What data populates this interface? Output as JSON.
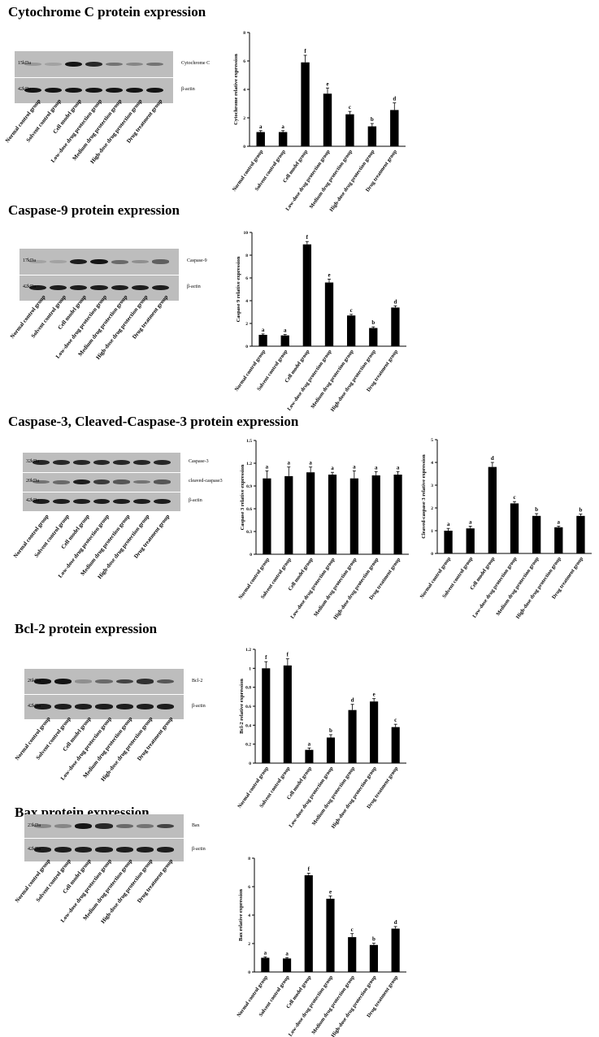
{
  "groups": [
    "Normal control group",
    "Solvent control group",
    "Cell model group",
    "Low-dose drug protection group",
    "Medium drug protection group",
    "High-dose drug protection group",
    "Drug treatment group"
  ],
  "sections": [
    {
      "title": "Cytochrome C protein expression"
    },
    {
      "title": "Caspase-9 protein expression"
    },
    {
      "title": "Caspase-3, Cleaved-Caspase-3 protein expression"
    },
    {
      "title": "Bcl-2 protein expression"
    },
    {
      "title": "Bax protein expression"
    }
  ],
  "blots": [
    {
      "rows": [
        {
          "kda": "15kDa",
          "protein": "Cytochrome C",
          "intensity": [
            0.25,
            0.2,
            0.95,
            0.85,
            0.45,
            0.35,
            0.45
          ]
        },
        {
          "kda": "42kDa",
          "protein": "β-actin",
          "intensity": [
            0.95,
            0.95,
            0.95,
            0.95,
            0.95,
            0.95,
            0.95
          ]
        }
      ]
    },
    {
      "rows": [
        {
          "kda": "17kDa",
          "protein": "Caspase-9",
          "intensity": [
            0.2,
            0.2,
            0.9,
            0.95,
            0.5,
            0.3,
            0.55
          ]
        },
        {
          "kda": "42kDa",
          "protein": "β-actin",
          "intensity": [
            0.9,
            0.9,
            0.9,
            0.9,
            0.9,
            0.9,
            0.9
          ]
        }
      ]
    },
    {
      "rows": [
        {
          "kda": "32kDa",
          "protein": "Caspase-3",
          "intensity": [
            0.85,
            0.85,
            0.85,
            0.85,
            0.85,
            0.85,
            0.85
          ]
        },
        {
          "kda": "20kDa",
          "protein": "cleaved-caspase3",
          "intensity": [
            0.45,
            0.5,
            0.9,
            0.75,
            0.6,
            0.45,
            0.6
          ]
        },
        {
          "kda": "42kDa",
          "protein": "β-actin",
          "intensity": [
            0.9,
            0.9,
            0.9,
            0.9,
            0.9,
            0.9,
            0.9
          ]
        }
      ]
    },
    {
      "rows": [
        {
          "kda": "26kDa",
          "protein": "Bcl-2",
          "intensity": [
            0.95,
            0.95,
            0.3,
            0.5,
            0.7,
            0.8,
            0.6
          ]
        },
        {
          "kda": "42kDa",
          "protein": "β-actin",
          "intensity": [
            0.9,
            0.9,
            0.9,
            0.9,
            0.9,
            0.9,
            0.9
          ]
        }
      ]
    },
    {
      "rows": [
        {
          "kda": "23kDa",
          "protein": "Bax",
          "intensity": [
            0.35,
            0.35,
            0.95,
            0.85,
            0.5,
            0.45,
            0.7
          ]
        },
        {
          "kda": "42kDa",
          "protein": "β-actin",
          "intensity": [
            0.9,
            0.9,
            0.9,
            0.9,
            0.9,
            0.9,
            0.9
          ]
        }
      ]
    }
  ],
  "chart_data": [
    {
      "type": "bar",
      "ylabel": "Cytochrome relative expression",
      "ylim": [
        0,
        8
      ],
      "yticks": [
        0,
        2,
        4,
        6,
        8
      ],
      "categories": [
        "Normal control group",
        "Solvent control group",
        "Cell model group",
        "Low-dose drug protection group",
        "Medium drug protection group",
        "High-dose drug protection group",
        "Drug treatment group"
      ],
      "values": [
        1.0,
        1.0,
        5.9,
        3.7,
        2.25,
        1.4,
        2.55
      ],
      "errors": [
        0.1,
        0.1,
        0.5,
        0.4,
        0.2,
        0.2,
        0.5
      ],
      "letters": [
        "a",
        "a",
        "f",
        "e",
        "c",
        "b",
        "d"
      ]
    },
    {
      "type": "bar",
      "ylabel": "Caspase 9 relative expression",
      "ylim": [
        0,
        10
      ],
      "yticks": [
        0,
        2,
        4,
        6,
        8,
        10
      ],
      "categories": [
        "Normal control group",
        "Solvent control group",
        "Cell model group",
        "Low-dose drug protection group",
        "Medium drug protection group",
        "High-dose drug protection group",
        "Drug treatment group"
      ],
      "values": [
        1.0,
        0.95,
        8.95,
        5.6,
        2.7,
        1.6,
        3.4
      ],
      "errors": [
        0.08,
        0.08,
        0.25,
        0.3,
        0.1,
        0.1,
        0.15
      ],
      "letters": [
        "a",
        "a",
        "f",
        "e",
        "c",
        "b",
        "d"
      ]
    },
    {
      "type": "bar",
      "ylabel": "Caspase 3  relative expression",
      "ylim": [
        0,
        1.5
      ],
      "yticks": [
        0,
        0.3,
        0.6,
        0.9,
        1.2,
        1.5
      ],
      "categories": [
        "Normal control group",
        "Solvent control group",
        "Cell model group",
        "Low-dose drug protection group",
        "Medium drug protection group",
        "High-dose drug protection group",
        "Drug treatment group"
      ],
      "values": [
        1.0,
        1.03,
        1.08,
        1.05,
        1.0,
        1.04,
        1.05
      ],
      "errors": [
        0.1,
        0.12,
        0.07,
        0.03,
        0.1,
        0.05,
        0.04
      ],
      "letters": [
        "a",
        "a",
        "a",
        "a",
        "a",
        "a",
        "a"
      ]
    },
    {
      "type": "bar",
      "ylabel": "Cleaved-caspase 3  relative expression",
      "ylim": [
        0,
        5
      ],
      "yticks": [
        0,
        1,
        2,
        3,
        4,
        5
      ],
      "categories": [
        "Normal control group",
        "Solvent control group",
        "Cell model group",
        "Low-dose drug protection group",
        "Medium drug protection group",
        "High-dose drug protection group",
        "Drug treatment group"
      ],
      "values": [
        1.0,
        1.1,
        3.8,
        2.2,
        1.65,
        1.15,
        1.65
      ],
      "errors": [
        0.1,
        0.1,
        0.2,
        0.08,
        0.1,
        0.05,
        0.08
      ],
      "letters": [
        "a",
        "a",
        "d",
        "c",
        "b",
        "a",
        "b"
      ]
    },
    {
      "type": "bar",
      "ylabel": "Bcl-2  relative expression",
      "ylim": [
        0,
        1.2
      ],
      "yticks": [
        0,
        0.2,
        0.4,
        0.6,
        0.8,
        1.0,
        1.2
      ],
      "categories": [
        "Normal control group",
        "Solvent control group",
        "Cell model group",
        "Low-dose drug protection group",
        "Medium drug protection group",
        "High-dose drug protection group",
        "Drug treatment group"
      ],
      "values": [
        1.0,
        1.03,
        0.14,
        0.27,
        0.56,
        0.65,
        0.38
      ],
      "errors": [
        0.07,
        0.07,
        0.02,
        0.03,
        0.06,
        0.03,
        0.03
      ],
      "letters": [
        "f",
        "f",
        "a",
        "b",
        "d",
        "e",
        "c"
      ]
    },
    {
      "type": "bar",
      "ylabel": "Bax relative expression",
      "ylim": [
        0,
        8
      ],
      "yticks": [
        0,
        2,
        4,
        6,
        8
      ],
      "categories": [
        "Normal control group",
        "Solvent control group",
        "Cell model group",
        "Low-dose drug protection group",
        "Medium drug protection group",
        "High-dose drug protection group",
        "Drug treatment group"
      ],
      "values": [
        1.0,
        0.95,
        6.8,
        5.15,
        2.45,
        1.9,
        3.05
      ],
      "errors": [
        0.06,
        0.06,
        0.15,
        0.2,
        0.25,
        0.12,
        0.15
      ],
      "letters": [
        "a",
        "a",
        "f",
        "e",
        "c",
        "b",
        "d"
      ]
    }
  ]
}
